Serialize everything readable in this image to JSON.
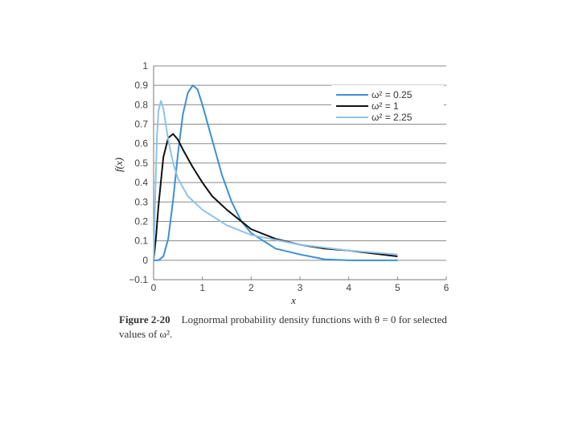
{
  "caption": {
    "label": "Figure 2-20",
    "text": "Lognormal probability density functions with θ = 0 for selected values of ω²."
  },
  "chart_data": {
    "type": "line",
    "title": "",
    "xlabel": "x",
    "ylabel": "f(x)",
    "xlim": [
      0,
      6
    ],
    "ylim": [
      -0.1,
      1
    ],
    "xticks": [
      "0",
      "1",
      "2",
      "3",
      "4",
      "5",
      "6"
    ],
    "yticks": [
      "−0.1",
      "0",
      "0.1",
      "0.2",
      "0.3",
      "0.4",
      "0.5",
      "0.6",
      "0.7",
      "0.8",
      "0.9",
      "1"
    ],
    "grid": "horizontal",
    "legend_position": "top-right",
    "series": [
      {
        "name": "ω² = 0.25",
        "color": "#3d8fd6",
        "x": [
          0,
          0.1,
          0.2,
          0.3,
          0.4,
          0.5,
          0.6,
          0.7,
          0.8,
          0.9,
          1.0,
          1.2,
          1.4,
          1.6,
          1.8,
          2.0,
          2.5,
          3.0,
          3.5,
          4.0,
          5.0
        ],
        "y": [
          0,
          0.0,
          0.02,
          0.11,
          0.31,
          0.55,
          0.75,
          0.86,
          0.9,
          0.88,
          0.8,
          0.62,
          0.44,
          0.3,
          0.2,
          0.14,
          0.06,
          0.03,
          0.005,
          0.0,
          0.0
        ]
      },
      {
        "name": "ω² = 1",
        "color": "#111111",
        "x": [
          0,
          0.05,
          0.1,
          0.2,
          0.3,
          0.4,
          0.5,
          0.6,
          0.8,
          1.0,
          1.2,
          1.5,
          2.0,
          2.5,
          3.0,
          3.5,
          4.0,
          5.0
        ],
        "y": [
          0,
          0.12,
          0.28,
          0.53,
          0.63,
          0.65,
          0.62,
          0.57,
          0.48,
          0.4,
          0.33,
          0.26,
          0.16,
          0.11,
          0.08,
          0.06,
          0.05,
          0.02
        ]
      },
      {
        "name": "ω² = 2.25",
        "color": "#8ec3e8",
        "x": [
          0,
          0.03,
          0.07,
          0.1,
          0.15,
          0.2,
          0.3,
          0.4,
          0.5,
          0.7,
          1.0,
          1.5,
          2.0,
          3.0,
          4.0,
          5.0
        ],
        "y": [
          0,
          0.3,
          0.64,
          0.77,
          0.82,
          0.78,
          0.62,
          0.5,
          0.42,
          0.33,
          0.26,
          0.18,
          0.13,
          0.08,
          0.05,
          0.03
        ]
      }
    ]
  }
}
